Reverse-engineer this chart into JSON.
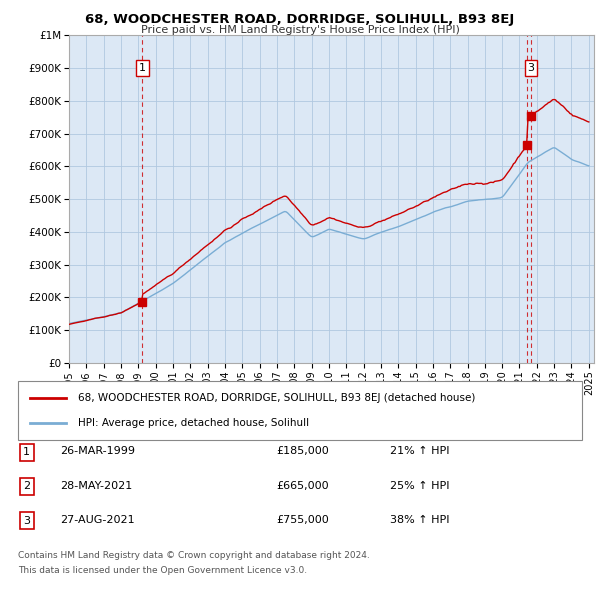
{
  "title": "68, WOODCHESTER ROAD, DORRIDGE, SOLIHULL, B93 8EJ",
  "subtitle": "Price paid vs. HM Land Registry's House Price Index (HPI)",
  "legend_line1": "68, WOODCHESTER ROAD, DORRIDGE, SOLIHULL, B93 8EJ (detached house)",
  "legend_line2": "HPI: Average price, detached house, Solihull",
  "footnote1": "Contains HM Land Registry data © Crown copyright and database right 2024.",
  "footnote2": "This data is licensed under the Open Government Licence v3.0.",
  "transactions": [
    {
      "num": 1,
      "date": "26-MAR-1999",
      "price": "£185,000",
      "hpi": "21% ↑ HPI",
      "year": 1999.23,
      "value": 185000
    },
    {
      "num": 2,
      "date": "28-MAY-2021",
      "price": "£665,000",
      "hpi": "25% ↑ HPI",
      "year": 2021.41,
      "value": 665000
    },
    {
      "num": 3,
      "date": "27-AUG-2021",
      "price": "£755,000",
      "hpi": "38% ↑ HPI",
      "year": 2021.66,
      "value": 755000
    }
  ],
  "red_line_color": "#cc0000",
  "blue_line_color": "#7aadd4",
  "chart_bg_color": "#dce8f5",
  "background_color": "#ffffff",
  "grid_color": "#b0c8e0",
  "marker_box_color": "#cc0000",
  "ylim": [
    0,
    1000000
  ],
  "xlim_start": 1995.0,
  "xlim_end": 2025.3
}
